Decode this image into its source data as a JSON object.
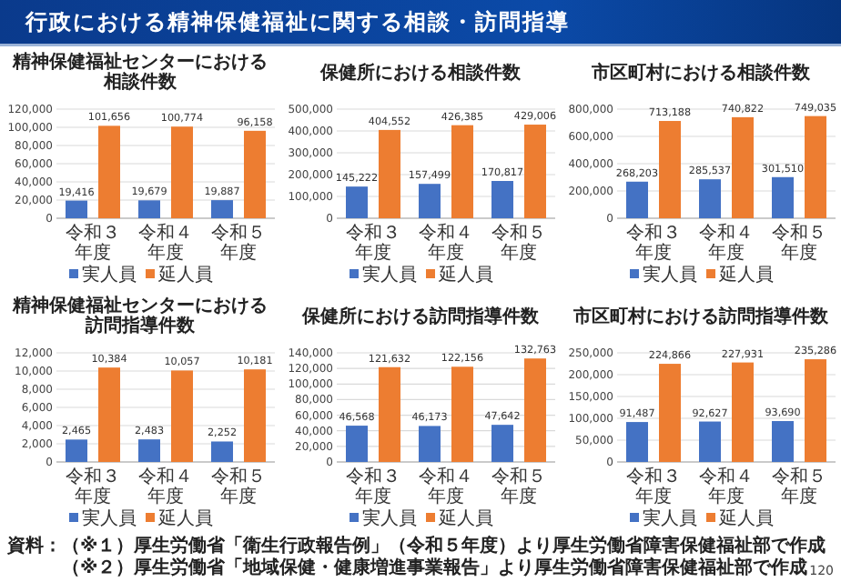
{
  "chart_data": [
    {
      "type": "bar",
      "title": "精神保健福祉センターにおける相談件数",
      "categories": [
        "令和３年度",
        "令和４年度",
        "令和５年度"
      ],
      "series": [
        {
          "name": "実人員",
          "color": "#4472c4",
          "values": [
            19416,
            19679,
            19887
          ],
          "value_labels": [
            "19,416",
            "19,679",
            "19,887"
          ]
        },
        {
          "name": "延人員",
          "color": "#ed7d31",
          "values": [
            101656,
            100774,
            96158
          ],
          "value_labels": [
            "101,656",
            "100,774",
            "96,158"
          ]
        }
      ],
      "ylim": [
        0,
        120000
      ],
      "yticks": [
        {
          "value": 0,
          "label": "0"
        },
        {
          "value": 20000,
          "label": "20,000"
        },
        {
          "value": 40000,
          "label": "40,000"
        },
        {
          "value": 60000,
          "label": "60,000"
        },
        {
          "value": 80000,
          "label": "80,000"
        },
        {
          "value": 100000,
          "label": "100,000"
        },
        {
          "value": 120000,
          "label": "120,000"
        }
      ],
      "grid": "y",
      "legend": "bottom",
      "annotations": [
        "行政における精神保健福祉に関する相談・訪問指導"
      ]
    },
    {
      "type": "bar",
      "title": "保健所における相談件数",
      "categories": [
        "令和３年度",
        "令和４年度",
        "令和５年度"
      ],
      "series": [
        {
          "name": "実人員",
          "color": "#4472c4",
          "values": [
            145222,
            157499,
            170817
          ],
          "value_labels": [
            "145,222",
            "157,499",
            "170,817"
          ]
        },
        {
          "name": "延人員",
          "color": "#ed7d31",
          "values": [
            404552,
            426385,
            429006
          ],
          "value_labels": [
            "404,552",
            "426,385",
            "429,006"
          ]
        }
      ],
      "ylim": [
        0,
        500000
      ],
      "yticks": [
        {
          "value": 0,
          "label": "0"
        },
        {
          "value": 100000,
          "label": "100,000"
        },
        {
          "value": 200000,
          "label": "200,000"
        },
        {
          "value": 300000,
          "label": "300,000"
        },
        {
          "value": 400000,
          "label": "400,000"
        },
        {
          "value": 500000,
          "label": "500,000"
        }
      ],
      "grid": "y",
      "legend": "bottom"
    },
    {
      "type": "bar",
      "title": "市区町村における相談件数",
      "categories": [
        "令和３年度",
        "令和４年度",
        "令和５年度"
      ],
      "series": [
        {
          "name": "実人員",
          "color": "#4472c4",
          "values": [
            268203,
            285537,
            301510
          ],
          "value_labels": [
            "268,203",
            "285,537",
            "301,510"
          ]
        },
        {
          "name": "延人員",
          "color": "#ed7d31",
          "values": [
            713188,
            740822,
            749035
          ],
          "value_labels": [
            "713,188",
            "740,822",
            "749,035"
          ]
        }
      ],
      "ylim": [
        0,
        800000
      ],
      "yticks": [
        {
          "value": 0,
          "label": "0"
        },
        {
          "value": 200000,
          "label": "200,000"
        },
        {
          "value": 400000,
          "label": "400,000"
        },
        {
          "value": 600000,
          "label": "600,000"
        },
        {
          "value": 800000,
          "label": "800,000"
        }
      ],
      "grid": "y",
      "legend": "bottom"
    },
    {
      "type": "bar",
      "title": "精神保健福祉センターにおける訪問指導件数",
      "categories": [
        "令和３年度",
        "令和４年度",
        "令和５年度"
      ],
      "series": [
        {
          "name": "実人員",
          "color": "#4472c4",
          "values": [
            2465,
            2483,
            2252
          ],
          "value_labels": [
            "2,465",
            "2,483",
            "2,252"
          ]
        },
        {
          "name": "延人員",
          "color": "#ed7d31",
          "values": [
            10384,
            10057,
            10181
          ],
          "value_labels": [
            "10,384",
            "10,057",
            "10,181"
          ]
        }
      ],
      "ylim": [
        0,
        12000
      ],
      "yticks": [
        {
          "value": 0,
          "label": "0"
        },
        {
          "value": 2000,
          "label": "2,000"
        },
        {
          "value": 4000,
          "label": "4,000"
        },
        {
          "value": 6000,
          "label": "6,000"
        },
        {
          "value": 8000,
          "label": "8,000"
        },
        {
          "value": 10000,
          "label": "10,000"
        },
        {
          "value": 12000,
          "label": "12,000"
        }
      ],
      "grid": "y",
      "legend": "bottom"
    },
    {
      "type": "bar",
      "title": "保健所における訪問指導件数",
      "categories": [
        "令和３年度",
        "令和４年度",
        "令和５年度"
      ],
      "series": [
        {
          "name": "実人員",
          "color": "#4472c4",
          "values": [
            46568,
            46173,
            47642
          ],
          "value_labels": [
            "46,568",
            "46,173",
            "47,642"
          ]
        },
        {
          "name": "延人員",
          "color": "#ed7d31",
          "values": [
            121632,
            122156,
            132763
          ],
          "value_labels": [
            "121,632",
            "122,156",
            "132,763"
          ]
        }
      ],
      "ylim": [
        0,
        140000
      ],
      "yticks": [
        {
          "value": 0,
          "label": "0"
        },
        {
          "value": 20000,
          "label": "20,000"
        },
        {
          "value": 40000,
          "label": "40,000"
        },
        {
          "value": 60000,
          "label": "60,000"
        },
        {
          "value": 80000,
          "label": "80,000"
        },
        {
          "value": 100000,
          "label": "100,000"
        },
        {
          "value": 120000,
          "label": "120,000"
        },
        {
          "value": 140000,
          "label": "140,000"
        }
      ],
      "grid": "y",
      "legend": "bottom"
    },
    {
      "type": "bar",
      "title": "市区町村における訪問指導件数",
      "categories": [
        "令和３年度",
        "令和４年度",
        "令和５年度"
      ],
      "series": [
        {
          "name": "実人員",
          "color": "#4472c4",
          "values": [
            91487,
            92627,
            93690
          ],
          "value_labels": [
            "91,487",
            "92,627",
            "93,690"
          ]
        },
        {
          "name": "延人員",
          "color": "#ed7d31",
          "values": [
            224866,
            227931,
            235286
          ],
          "value_labels": [
            "224,866",
            "227,931",
            "235,286"
          ]
        }
      ],
      "ylim": [
        0,
        250000
      ],
      "yticks": [
        {
          "value": 0,
          "label": "0"
        },
        {
          "value": 50000,
          "label": "50,000"
        },
        {
          "value": 100000,
          "label": "100,000"
        },
        {
          "value": 150000,
          "label": "150,000"
        },
        {
          "value": 200000,
          "label": "200,000"
        },
        {
          "value": 250000,
          "label": "250,000"
        }
      ],
      "grid": "y",
      "legend": "bottom",
      "annotations": [
        "資料：（※１）厚生労働省「衛生行政報告例」（令和５年度）より厚生労働省障害保健福祉部で作成",
        "（※２）厚生労働省「地域保健・健康増進事業報告」より厚生労働省障害保健福祉部で作成",
        "120"
      ]
    }
  ]
}
